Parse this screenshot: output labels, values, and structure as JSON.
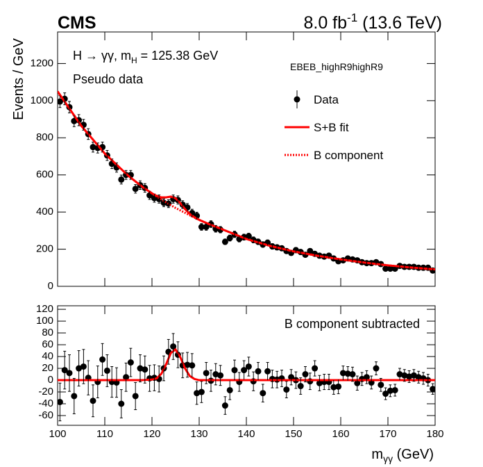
{
  "header": {
    "experiment": "CMS",
    "lumi_main": "8.0 fb",
    "lumi_sup": "-1",
    "lumi_energy": " (13.6 TeV)"
  },
  "annotation": {
    "process": "H → γγ, m",
    "process_sub": "H",
    "process_mass": " = 125.38 GeV",
    "sample": "Pseudo data",
    "category": "EBEB_highR9highR9",
    "lower": "B component subtracted"
  },
  "axes": {
    "ylabel": "Events / GeV",
    "xlabel_main": "m",
    "xlabel_sub": "γγ",
    "xlabel_unit": " (GeV)"
  },
  "chart_data": [
    {
      "type": "scatter",
      "legend": "upper right",
      "xlim": [
        100,
        180
      ],
      "xticks": [
        100,
        110,
        120,
        130,
        140,
        150,
        160,
        170,
        180
      ],
      "ylim": [
        0,
        1370
      ],
      "yticks": [
        0,
        200,
        400,
        600,
        800,
        1000,
        1200
      ],
      "series": [
        {
          "name": "Data",
          "color": "#000000",
          "x": [
            100.5,
            101.5,
            102.5,
            103.5,
            104.5,
            105.5,
            106.5,
            107.5,
            108.5,
            109.5,
            110.5,
            111.5,
            112.5,
            113.5,
            114.5,
            115.5,
            116.5,
            117.5,
            118.5,
            119.5,
            120.5,
            121.5,
            122.5,
            123.5,
            124.5,
            125.5,
            126.5,
            127.5,
            128.5,
            129.5,
            130.5,
            131.5,
            132.5,
            133.5,
            134.5,
            135.5,
            136.5,
            137.5,
            138.5,
            139.5,
            140.5,
            141.5,
            142.5,
            143.5,
            144.5,
            145.5,
            146.5,
            147.5,
            148.5,
            149.5,
            150.5,
            151.5,
            152.5,
            153.5,
            154.5,
            155.5,
            156.5,
            157.5,
            158.5,
            159.5,
            160.5,
            161.5,
            162.5,
            163.5,
            164.5,
            165.5,
            166.5,
            167.5,
            168.5,
            169.5,
            170.5,
            171.5,
            172.5,
            173.5,
            174.5,
            175.5,
            176.5,
            177.5,
            178.5,
            179.5
          ],
          "values": [
            995,
            1010,
            965,
            890,
            895,
            870,
            820,
            750,
            745,
            750,
            705,
            660,
            640,
            575,
            600,
            600,
            525,
            545,
            530,
            490,
            475,
            470,
            450,
            445,
            470,
            465,
            440,
            425,
            395,
            380,
            320,
            320,
            335,
            310,
            305,
            240,
            260,
            280,
            255,
            265,
            270,
            250,
            240,
            225,
            235,
            215,
            210,
            205,
            190,
            180,
            195,
            185,
            170,
            190,
            175,
            165,
            160,
            165,
            150,
            135,
            140,
            150,
            145,
            140,
            130,
            125,
            125,
            130,
            120,
            95,
            95,
            95,
            110,
            105,
            105,
            105,
            100,
            100,
            100,
            85
          ],
          "errors": [
            32,
            32,
            31,
            30,
            30,
            29,
            29,
            27,
            27,
            27,
            27,
            26,
            25,
            24,
            24,
            24,
            23,
            23,
            23,
            22,
            22,
            22,
            21,
            21,
            22,
            22,
            21,
            21,
            20,
            19,
            18,
            18,
            18,
            18,
            17,
            15,
            16,
            17,
            16,
            16,
            16,
            16,
            15,
            15,
            15,
            15,
            14,
            14,
            14,
            13,
            14,
            14,
            13,
            14,
            13,
            13,
            13,
            13,
            12,
            12,
            12,
            12,
            12,
            12,
            11,
            11,
            11,
            11,
            11,
            10,
            10,
            10,
            10,
            10,
            10,
            10,
            10,
            10,
            10,
            9
          ]
        },
        {
          "name": "S+B fit",
          "color": "#ff0000",
          "style": "solid",
          "x": [
            100,
            105,
            110,
            115,
            118,
            120,
            121,
            122,
            123,
            124,
            125,
            126,
            127,
            128,
            129,
            130,
            132,
            135,
            140,
            145,
            150,
            155,
            160,
            165,
            170,
            175,
            180
          ],
          "values": [
            1050,
            865,
            715,
            595,
            535,
            501,
            487,
            479,
            479,
            483,
            474,
            448,
            416,
            390,
            372,
            358,
            336,
            306,
            255,
            218,
            188,
            165,
            145,
            128,
            113,
            101,
            91
          ]
        },
        {
          "name": "B component",
          "color": "#ff0000",
          "style": "dotted",
          "x": [
            100,
            105,
            110,
            115,
            118,
            120,
            121,
            122,
            123,
            124,
            125,
            126,
            127,
            128,
            129,
            130,
            132,
            135,
            140,
            145,
            150,
            155,
            160,
            165,
            170,
            175,
            180
          ],
          "values": [
            1050,
            865,
            715,
            595,
            535,
            500,
            484,
            468,
            452,
            437,
            422,
            409,
            396,
            383,
            370,
            358,
            336,
            306,
            255,
            218,
            188,
            165,
            145,
            128,
            113,
            101,
            91
          ]
        }
      ]
    },
    {
      "type": "scatter",
      "xlim": [
        100,
        180
      ],
      "xticks": [
        100,
        110,
        120,
        130,
        140,
        150,
        160,
        170,
        180
      ],
      "ylim": [
        -76.5,
        126
      ],
      "yticks": [
        -60,
        -40,
        -20,
        0,
        20,
        40,
        60,
        80,
        100,
        120
      ],
      "series": [
        {
          "color": "#000000",
          "x": [
            100.5,
            101.5,
            102.5,
            103.5,
            104.5,
            105.5,
            106.5,
            107.5,
            108.5,
            109.5,
            110.5,
            111.5,
            112.5,
            113.5,
            114.5,
            115.5,
            116.5,
            117.5,
            118.5,
            119.5,
            120.5,
            121.5,
            122.5,
            123.5,
            124.5,
            125.5,
            126.5,
            127.5,
            128.5,
            129.5,
            130.5,
            131.5,
            132.5,
            133.5,
            134.5,
            135.5,
            136.5,
            137.5,
            138.5,
            139.5,
            140.5,
            141.5,
            142.5,
            143.5,
            144.5,
            145.5,
            146.5,
            147.5,
            148.5,
            149.5,
            150.5,
            151.5,
            152.5,
            153.5,
            154.5,
            155.5,
            156.5,
            157.5,
            158.5,
            159.5,
            160.5,
            161.5,
            162.5,
            163.5,
            164.5,
            165.5,
            166.5,
            167.5,
            168.5,
            169.5,
            170.5,
            171.5,
            172.5,
            173.5,
            174.5,
            175.5,
            176.5,
            177.5,
            178.5,
            179.5
          ],
          "values": [
            -37,
            17,
            12,
            -27,
            20,
            23,
            4,
            -35,
            -3,
            35,
            16,
            -3,
            -4,
            -40,
            5,
            30,
            -27,
            20,
            18,
            3,
            4,
            2,
            20,
            48,
            57,
            43,
            25,
            26,
            25,
            -22,
            -20,
            12,
            -1,
            10,
            8,
            -43,
            -17,
            17,
            -3,
            17,
            23,
            -2,
            15,
            -22,
            15,
            2,
            1,
            3,
            -16,
            5,
            0,
            -10,
            10,
            -2,
            20,
            -5,
            -3,
            -3,
            -12,
            -11,
            12,
            11,
            10,
            -5,
            2,
            5,
            -4,
            20,
            -8,
            -23,
            -18,
            -17,
            10,
            8,
            6,
            8,
            5,
            3,
            0,
            -15
          ],
          "errors": [
            32,
            32,
            31,
            30,
            30,
            29,
            29,
            27,
            27,
            27,
            27,
            26,
            25,
            24,
            24,
            24,
            23,
            23,
            23,
            22,
            22,
            22,
            21,
            21,
            22,
            22,
            21,
            21,
            20,
            19,
            18,
            18,
            18,
            18,
            17,
            15,
            16,
            17,
            16,
            16,
            16,
            16,
            15,
            15,
            15,
            15,
            14,
            14,
            14,
            13,
            14,
            14,
            13,
            14,
            13,
            13,
            13,
            13,
            12,
            12,
            12,
            12,
            12,
            12,
            11,
            11,
            11,
            11,
            11,
            10,
            10,
            10,
            10,
            10,
            10,
            10,
            10,
            10,
            10,
            9
          ]
        },
        {
          "color": "#ff0000",
          "style": "solid",
          "x": [
            100,
            105,
            110,
            115,
            118,
            120,
            121,
            122,
            123,
            124,
            125,
            126,
            127,
            128,
            129,
            130,
            132,
            135,
            140,
            145,
            150,
            155,
            160,
            165,
            170,
            175,
            180
          ],
          "values": [
            0,
            0,
            0,
            0,
            0,
            1,
            3,
            11,
            27,
            46,
            52,
            39,
            20,
            7,
            2,
            0,
            0,
            0,
            0,
            0,
            0,
            0,
            0,
            0,
            0,
            0,
            0
          ]
        }
      ]
    }
  ]
}
